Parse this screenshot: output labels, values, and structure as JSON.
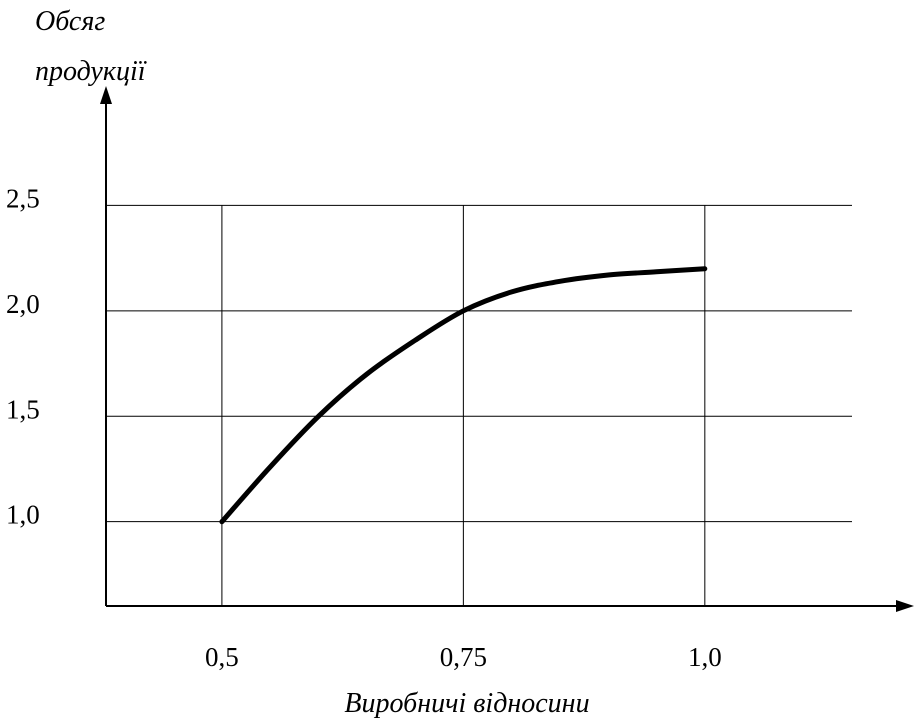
{
  "chart_data": {
    "type": "line",
    "ylabel_line1": "Обсяг",
    "ylabel_line2": "продукції",
    "xlabel": "Виробничі відносини",
    "x_ticks": [
      "0,5",
      "0,75",
      "1,0"
    ],
    "x_tick_values": [
      0.5,
      0.75,
      1.0
    ],
    "y_ticks": [
      "1,0",
      "1,5",
      "2,0",
      "2,5"
    ],
    "y_tick_values": [
      1.0,
      1.5,
      2.0,
      2.5
    ],
    "xlim": [
      0.38,
      1.2
    ],
    "ylim": [
      0.6,
      3.0
    ],
    "grid": true,
    "series": [
      {
        "values": [
          {
            "x": 0.5,
            "y": 1.0
          },
          {
            "x": 0.55,
            "y": 1.26
          },
          {
            "x": 0.6,
            "y": 1.5
          },
          {
            "x": 0.65,
            "y": 1.7
          },
          {
            "x": 0.7,
            "y": 1.86
          },
          {
            "x": 0.75,
            "y": 2.0
          },
          {
            "x": 0.8,
            "y": 2.09
          },
          {
            "x": 0.85,
            "y": 2.14
          },
          {
            "x": 0.9,
            "y": 2.17
          },
          {
            "x": 0.95,
            "y": 2.185
          },
          {
            "x": 1.0,
            "y": 2.2
          }
        ]
      }
    ]
  }
}
